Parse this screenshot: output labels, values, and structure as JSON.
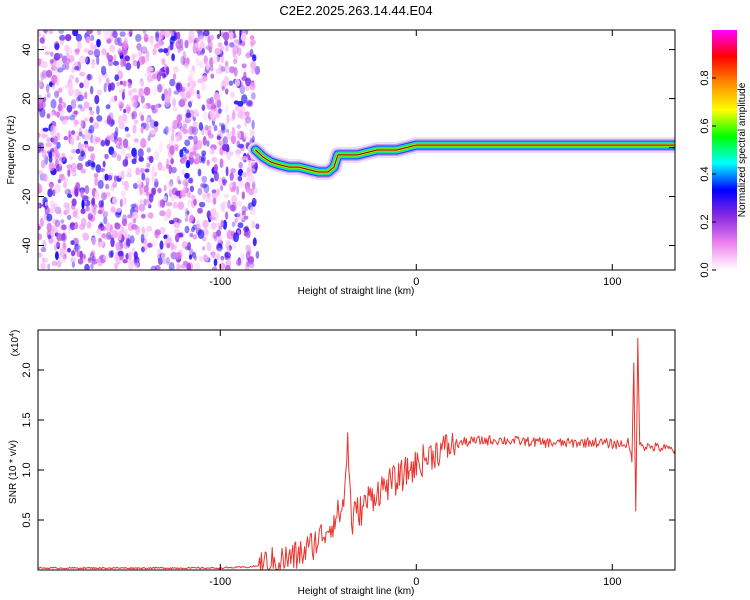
{
  "title": "C2E2.2025.263.14.44.E04",
  "chart_data": [
    {
      "type": "heatmap",
      "title": "C2E2.2025.263.14.44.E04",
      "xlabel": "Height of straight line (km)",
      "ylabel": "Frequency (Hz)",
      "xlim": [
        -193,
        132
      ],
      "ylim": [
        -50,
        48
      ],
      "xticks": [
        -100,
        0,
        100
      ],
      "yticks": [
        -40,
        -20,
        0,
        20,
        40
      ],
      "colorbar": {
        "label": "Normalized spectral amplitude",
        "ticks": [
          0.0,
          0.2,
          0.4,
          0.6,
          0.8
        ],
        "range": [
          0,
          1
        ],
        "colors": [
          "#ffffff",
          "#ee82ee",
          "#8a2be2",
          "#0000ff",
          "#00ffff",
          "#00ff00",
          "#ffff00",
          "#ff8c00",
          "#ff0000",
          "#ff00ff"
        ]
      },
      "noise_region_x": [
        -193,
        -81
      ],
      "ridge": {
        "x": [
          -82,
          -78,
          -74,
          -70,
          -65,
          -60,
          -55,
          -50,
          -45,
          -42,
          -40,
          -38,
          -35,
          -30,
          -25,
          -20,
          -15,
          -10,
          -5,
          0,
          10,
          20,
          30,
          40,
          50,
          60,
          70,
          80,
          90,
          100,
          105,
          110,
          115,
          120,
          132
        ],
        "y": [
          -1,
          -4,
          -6,
          -7,
          -8,
          -8,
          -9,
          -10,
          -10,
          -8,
          -3,
          -3,
          -3,
          -3,
          -2,
          -1,
          -1,
          -1,
          0,
          1,
          1,
          1,
          1,
          1,
          1,
          1,
          1,
          1,
          1,
          1,
          1,
          1,
          1,
          1,
          1
        ]
      }
    },
    {
      "type": "line",
      "xlabel": "Height of straight line (km)",
      "ylabel": "SNR (10 * v/v)",
      "y_multiplier": "(x10",
      "y_multiplier_exp": "4",
      "y_multiplier_close": ")",
      "xlim": [
        -193,
        132
      ],
      "ylim": [
        0,
        2.4
      ],
      "xticks": [
        -100,
        0,
        100
      ],
      "yticks": [
        0.5,
        1.0,
        1.5,
        2.0
      ],
      "ytick_labels": [
        "0.5",
        "1.0",
        "1.5",
        "2.0"
      ],
      "series": [
        {
          "color": "#e8352e",
          "x": [
            -193,
            -150,
            -100,
            -85,
            -78,
            -72,
            -68,
            -64,
            -60,
            -56,
            -52,
            -48,
            -45,
            -42,
            -40,
            -37,
            -35,
            -33,
            -31,
            -28,
            -25,
            -20,
            -15,
            -10,
            -5,
            0,
            5,
            10,
            15,
            20,
            25,
            30,
            40,
            50,
            60,
            70,
            80,
            90,
            100,
            105,
            108,
            110,
            111,
            112,
            113,
            114,
            116,
            120,
            125,
            132
          ],
          "y": [
            0.02,
            0.02,
            0.02,
            0.03,
            0.05,
            0.08,
            0.1,
            0.12,
            0.15,
            0.2,
            0.27,
            0.35,
            0.42,
            0.5,
            0.55,
            0.65,
            1.32,
            0.45,
            0.58,
            0.6,
            0.7,
            0.78,
            0.85,
            0.9,
            0.98,
            1.05,
            1.12,
            1.18,
            1.22,
            1.26,
            1.28,
            1.29,
            1.3,
            1.29,
            1.28,
            1.27,
            1.27,
            1.28,
            1.26,
            1.26,
            1.27,
            1.1,
            2.1,
            0.55,
            2.3,
            1.3,
            1.24,
            1.23,
            1.22,
            1.2
          ]
        }
      ]
    }
  ]
}
